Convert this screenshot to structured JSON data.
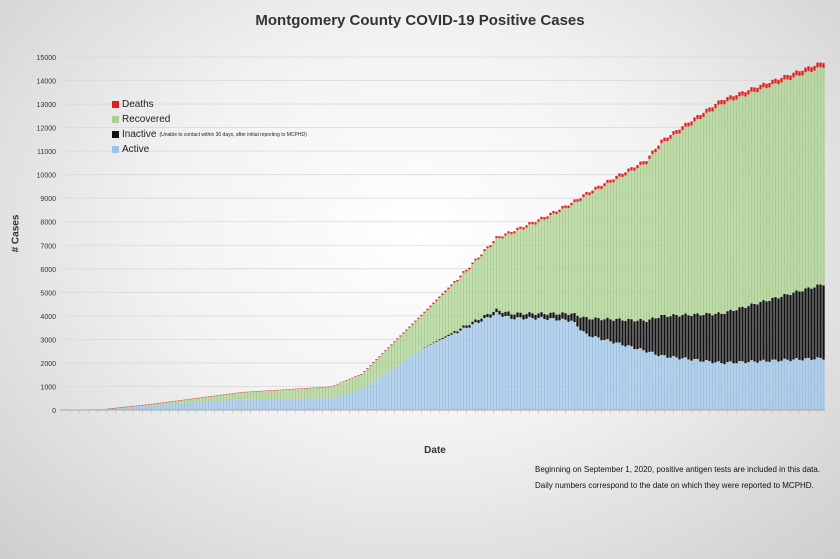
{
  "chart_data": {
    "type": "bar",
    "stacked": true,
    "title": "Montgomery County COVID-19 Positive Cases",
    "xlabel": "Date",
    "ylabel": "# Cases",
    "ylim": [
      0,
      15000
    ],
    "yticks": [
      0,
      1000,
      2000,
      3000,
      4000,
      5000,
      6000,
      7000,
      8000,
      9000,
      10000,
      11000,
      12000,
      13000,
      14000,
      15000
    ],
    "grid": true,
    "legend_position": "top-left",
    "legend": [
      {
        "name": "Deaths",
        "color": "#e02020",
        "note": ""
      },
      {
        "name": "Recovered",
        "color": "#a9d08e",
        "note": ""
      },
      {
        "name": "Inactive",
        "color": "#111111",
        "note": "(Unable to contact within 30 days, after initial reporting to MCPHD)"
      },
      {
        "name": "Active",
        "color": "#9dc3e6",
        "note": ""
      }
    ],
    "series_order": [
      "Active",
      "Inactive",
      "Recovered",
      "Deaths"
    ],
    "num_bars": 255,
    "series_keyframes": {
      "index": [
        0,
        15,
        30,
        60,
        90,
        95,
        100,
        120,
        135,
        145,
        150,
        160,
        170,
        175,
        195,
        200,
        220,
        254
      ],
      "Active": [
        0,
        50,
        200,
        450,
        500,
        700,
        850,
        2600,
        3500,
        4100,
        3900,
        3900,
        3800,
        3200,
        2500,
        2300,
        2000,
        2200
      ],
      "Inactive": [
        0,
        0,
        0,
        0,
        0,
        0,
        0,
        0,
        100,
        150,
        200,
        200,
        300,
        700,
        1300,
        1700,
        2100,
        3150
      ],
      "Recovered": [
        0,
        0,
        50,
        300,
        480,
        550,
        650,
        1400,
        2300,
        3000,
        3400,
        3950,
        4600,
        5200,
        6700,
        7300,
        8900,
        9250
      ],
      "Deaths": [
        0,
        0,
        5,
        10,
        20,
        25,
        30,
        50,
        70,
        80,
        90,
        100,
        110,
        120,
        140,
        150,
        180,
        200
      ]
    }
  },
  "notes": {
    "line1": "Beginning on September 1, 2020, positive antigen tests are included in this data.",
    "line2": "Daily numbers correspond to the date on which they were reported to MCPHD."
  }
}
